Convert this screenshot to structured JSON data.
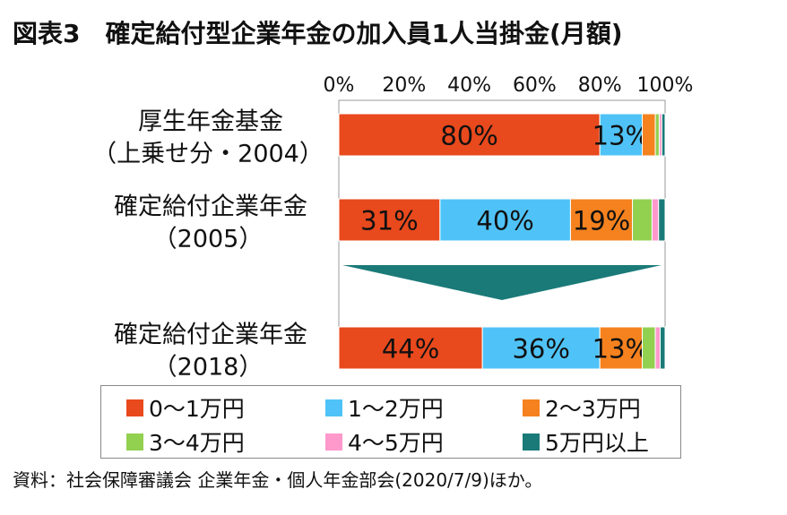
{
  "title": "図表3　確定給付型企業年金の加入員1人当掛金(月額)",
  "source": "資料：社会保障審議会 企業年金・個人年金部会(2020/7/9)ほか。",
  "chart_data": {
    "type": "bar",
    "orientation": "horizontal",
    "stacked": true,
    "xlim": [
      0,
      100
    ],
    "x_ticks": [
      "0%",
      "20%",
      "40%",
      "60%",
      "80%",
      "100%"
    ],
    "x_tick_values": [
      0,
      20,
      40,
      60,
      80,
      100
    ],
    "categories": [
      {
        "line1": "厚生年金基金",
        "line2": "（上乗せ分・2004）"
      },
      {
        "line1": "確定給付企業年金",
        "line2": "（2005）"
      },
      {
        "line1": "確定給付企業年金",
        "line2": "（2018）"
      }
    ],
    "series": [
      {
        "name": "0～1万円",
        "color": "#e8491d",
        "values": [
          80,
          31,
          44
        ],
        "labels": [
          "80%",
          "31%",
          "44%"
        ]
      },
      {
        "name": "1～2万円",
        "color": "#4fc3f7",
        "values": [
          13,
          40,
          36
        ],
        "labels": [
          "13%",
          "40%",
          "36%"
        ]
      },
      {
        "name": "2～3万円",
        "color": "#f5821f",
        "values": [
          4,
          19,
          13
        ],
        "labels": [
          "",
          "19%",
          "13%"
        ]
      },
      {
        "name": "3～4万円",
        "color": "#92d050",
        "values": [
          1.2,
          6,
          4
        ],
        "labels": [
          "",
          "",
          ""
        ]
      },
      {
        "name": "4～5万円",
        "color": "#ff99cc",
        "values": [
          0.8,
          2,
          1.5
        ],
        "labels": [
          "",
          "",
          ""
        ]
      },
      {
        "name": "5万円以上",
        "color": "#1a7a78",
        "values": [
          1,
          2,
          1.5
        ],
        "labels": [
          "",
          "",
          ""
        ]
      }
    ],
    "legend_position": "bottom",
    "arrow_color": "#1a7a78"
  }
}
